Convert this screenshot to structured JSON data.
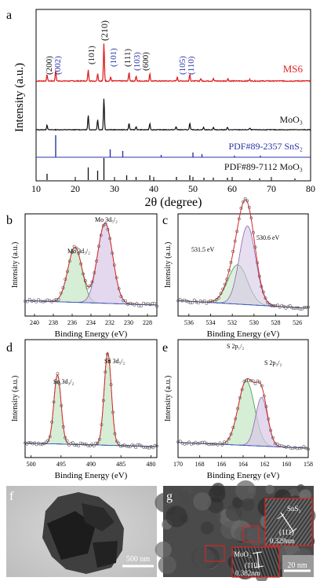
{
  "panels": {
    "a": {
      "letter": "a",
      "ylabel": "Intensity (a.u.)",
      "xlabel": "2θ (degree)",
      "xticks": [
        "10",
        "20",
        "30",
        "40",
        "50",
        "60",
        "70",
        "80"
      ],
      "traces": [
        {
          "label": "MS6",
          "color": "#e02424"
        },
        {
          "label": "MoO₃",
          "color": "#111111"
        },
        {
          "label": "PDF#89-2357 SnS₂",
          "color": "#2a35a8"
        },
        {
          "label": "PDF#89-7112 MoO₃",
          "color": "#111111"
        }
      ],
      "peak_labels_black": [
        "(200)",
        "(101)",
        "(210)",
        "(111)",
        "(600)"
      ],
      "peak_labels_blue": [
        "(002)",
        "(101)",
        "(103)",
        "(105)",
        "(110)"
      ]
    },
    "b": {
      "letter": "b",
      "ylabel": "Intensity (a.u.)",
      "xlabel": "Binding Energy (eV)",
      "xticks": [
        "240",
        "238",
        "236",
        "234",
        "232",
        "230",
        "228"
      ],
      "peak1": "Mo 3d₃/₂",
      "peak2": "Mo 3d₅/₂"
    },
    "c": {
      "letter": "c",
      "ylabel": "Intensity (a.u.)",
      "xlabel": "Binding Energy (eV)",
      "xticks": [
        "536",
        "534",
        "532",
        "530",
        "528",
        "526"
      ],
      "peak1": "531.5 eV",
      "peak2": "530.6 eV"
    },
    "d": {
      "letter": "d",
      "ylabel": "Intensity (a.u.)",
      "xlabel": "Binding Energy (eV)",
      "xticks": [
        "500",
        "495",
        "490",
        "485",
        "480"
      ],
      "peak1": "Sn 3d₃/₂",
      "peak2": "Sn 3d₅/₂"
    },
    "e": {
      "letter": "e",
      "ylabel": "Intensity (a.u.)",
      "xlabel": "Binding Energy (eV)",
      "xticks": [
        "170",
        "168",
        "166",
        "164",
        "162",
        "160",
        "158"
      ],
      "peak1": "S 2p₁/₂",
      "peak2": "S 2p₃/₂"
    },
    "f": {
      "letter": "f",
      "scalebar": "500 nm"
    },
    "g": {
      "letter": "g",
      "scalebar": "20 nm",
      "inset1_phase": "SnS₂",
      "inset1_plane": "(111)",
      "inset1_d": "0.329nm",
      "inset2_phase": "MoO₃",
      "inset2_plane": "(110)",
      "inset2_d": "0.382nm"
    }
  }
}
